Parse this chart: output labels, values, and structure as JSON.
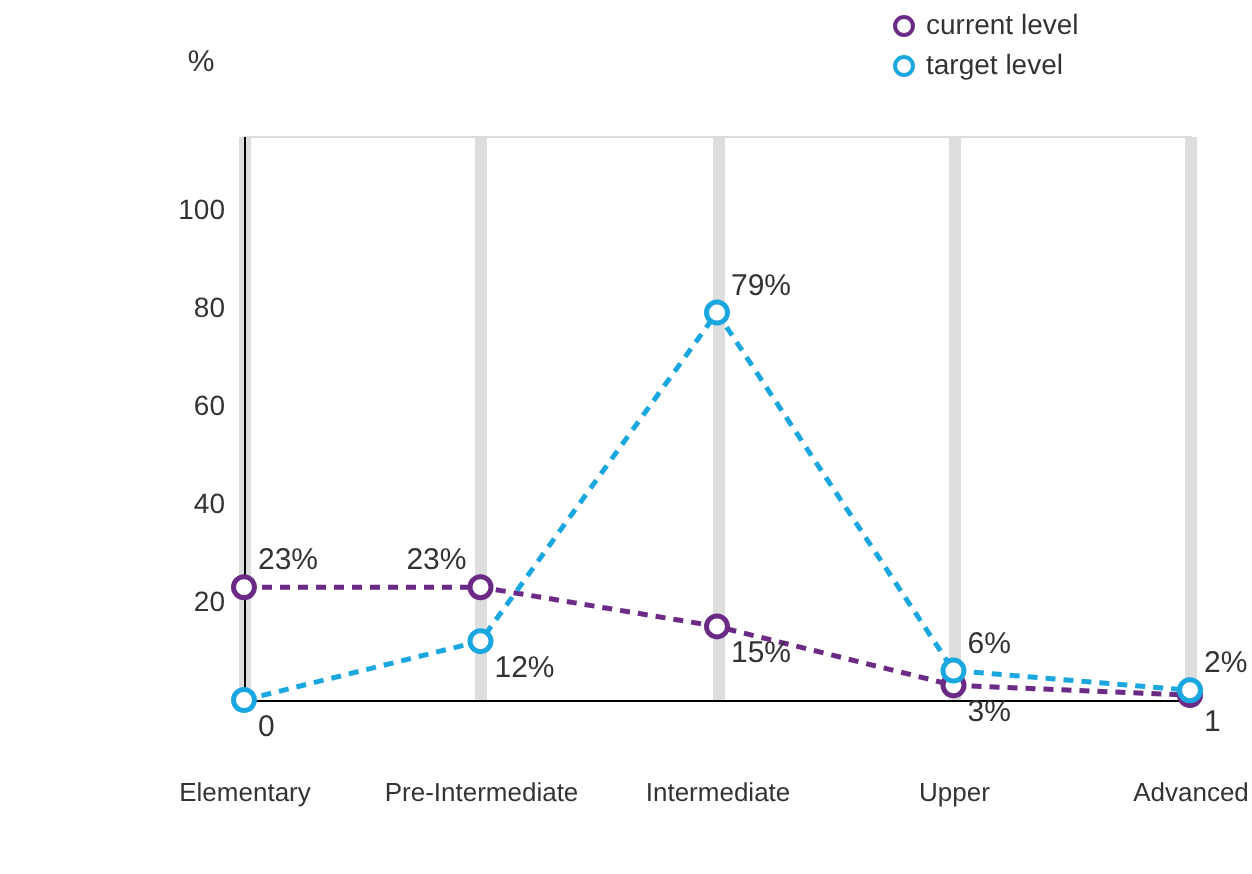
{
  "chart_data": {
    "type": "line",
    "ylabel": "%",
    "categories": [
      "Elementary",
      "Pre-Intermediate",
      "Intermediate",
      "Upper",
      "Advanced"
    ],
    "series": [
      {
        "name": "current level",
        "color": "#6a2a86",
        "values": [
          23,
          23,
          15,
          3,
          1
        ],
        "value_labels": [
          "23%",
          "23%",
          "15%",
          "3%",
          "1"
        ]
      },
      {
        "name": "target level",
        "color": "#1aa7e0",
        "values": [
          0,
          12,
          79,
          6,
          2
        ],
        "value_labels": [
          "0",
          "12%",
          "79%",
          "6%",
          "2%"
        ]
      }
    ],
    "ylim": [
      0,
      115
    ],
    "yticks": [
      20,
      40,
      60,
      80,
      100
    ],
    "grid": "x",
    "legend": "top right",
    "marker": "circle",
    "line_style": "dashed"
  }
}
